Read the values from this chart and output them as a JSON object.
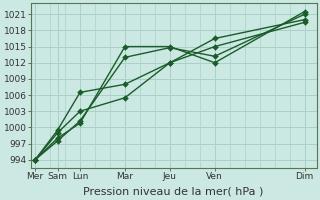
{
  "background_color": "#cce8e2",
  "grid_color": "#aad0c8",
  "line_color": "#1a5c2a",
  "marker_color": "#1a5c2a",
  "xlabel": "Pression niveau de la mer( hPa )",
  "xlabel_fontsize": 8,
  "yticks": [
    994,
    997,
    1000,
    1003,
    1006,
    1009,
    1012,
    1015,
    1018,
    1021
  ],
  "xtick_labels": [
    "Mer",
    "Sam",
    "Lun",
    "Mar",
    "Jeu",
    "Ven",
    "Dim"
  ],
  "xtick_positions": [
    0,
    1.5,
    3,
    6,
    9,
    12,
    18
  ],
  "ylim": [
    992.5,
    1023
  ],
  "xlim": [
    -0.3,
    18.8
  ],
  "series": [
    [
      994.0,
      998.0,
      1000.8,
      1015.0,
      1015.0,
      1012.0,
      1021.5
    ],
    [
      994.0,
      997.5,
      1001.2,
      1013.0,
      1014.8,
      1013.2,
      1021.0
    ],
    [
      994.0,
      999.5,
      1006.5,
      1008.0,
      1012.0,
      1016.5,
      1020.0
    ],
    [
      994.0,
      999.0,
      1003.0,
      1005.5,
      1012.0,
      1015.0,
      1019.5
    ]
  ],
  "marker_size": 3,
  "linewidth": 1.0
}
